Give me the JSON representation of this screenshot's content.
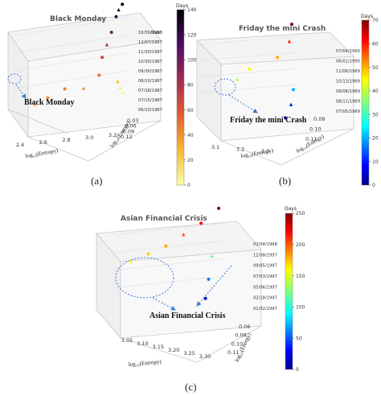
{
  "figure": {
    "panel_labels": [
      "(a)",
      "(b)",
      "(c)"
    ]
  },
  "chart_data": [
    {
      "type": "scatter",
      "title": "Black Monday",
      "xlabel": "log₁₀(Entropy)",
      "ylabel": "log₁₀(Energy)",
      "zlabel": "Date",
      "x_ticks": [
        "2.4",
        "2.6",
        "2.8",
        "3.0",
        "3.2"
      ],
      "y_ticks": [
        "0.03",
        "0.06",
        "0.09",
        "0.12"
      ],
      "z_ticks": [
        "10/30/1988",
        "12/07/1987",
        "11/30/1987",
        "10/30/1987",
        "09/30/1987",
        "08/10/1987",
        "07/18/1987",
        "07/15/1987",
        "06/10/1987"
      ],
      "colorbar": {
        "label": "Days",
        "colormap": "inferno",
        "ticks": [
          0,
          20,
          40,
          60,
          80,
          100,
          120,
          140
        ]
      },
      "annotation": "Black Monday",
      "points": [
        {
          "x": 2.45,
          "y": 0.04,
          "t": 30
        },
        {
          "x": 2.55,
          "y": 0.04,
          "t": 38
        },
        {
          "x": 2.7,
          "y": 0.05,
          "t": 44
        },
        {
          "x": 2.85,
          "y": 0.05,
          "t": 40
        },
        {
          "x": 3.0,
          "y": 0.07,
          "t": 50
        },
        {
          "x": 3.05,
          "y": 0.09,
          "t": 70
        },
        {
          "x": 3.1,
          "y": 0.1,
          "t": 85
        },
        {
          "x": 3.15,
          "y": 0.11,
          "t": 100
        },
        {
          "x": 3.2,
          "y": 0.12,
          "t": 120
        },
        {
          "x": 3.22,
          "y": 0.12,
          "t": 130
        },
        {
          "x": 3.25,
          "y": 0.12,
          "t": 138
        },
        {
          "x": 3.2,
          "y": 0.11,
          "t": 20
        },
        {
          "x": 3.22,
          "y": 0.11,
          "t": 10
        },
        {
          "x": 3.24,
          "y": 0.11,
          "t": 2
        }
      ]
    },
    {
      "type": "scatter",
      "title": "Friday the mini Crash",
      "xlabel": "log₁₀(Entropy)",
      "ylabel": "log₁₀(Energy)",
      "zlabel": "",
      "x_ticks": [
        "3.1",
        "3.2",
        "3.3"
      ],
      "y_ticks": [
        "0.09",
        "0.10",
        "0.11"
      ],
      "z_ticks": [
        "07/04/1990",
        "06/01/1990",
        "11/06/1989",
        "10/13/1989",
        "09/06/1989",
        "08/11/1989",
        "07/05/1989"
      ],
      "colorbar": {
        "label": "Days",
        "colormap": "jet",
        "ticks": [
          0,
          10,
          20,
          30,
          40,
          50,
          60,
          70
        ]
      },
      "annotation": "Friday the mini Crash",
      "points": [
        {
          "x": 3.1,
          "y": 0.09,
          "t": 40
        },
        {
          "x": 3.15,
          "y": 0.095,
          "t": 45
        },
        {
          "x": 3.25,
          "y": 0.1,
          "t": 50
        },
        {
          "x": 3.3,
          "y": 0.105,
          "t": 60
        },
        {
          "x": 3.32,
          "y": 0.11,
          "t": 72
        },
        {
          "x": 3.3,
          "y": 0.1,
          "t": 20
        },
        {
          "x": 3.28,
          "y": 0.095,
          "t": 10
        },
        {
          "x": 3.25,
          "y": 0.09,
          "t": 2
        }
      ]
    },
    {
      "type": "scatter",
      "title": "Asian Financial Crisis",
      "xlabel": "log₁₀(Entropy)",
      "ylabel": "log₁₀(Energy)",
      "zlabel": "",
      "x_ticks": [
        "3.05",
        "3.10",
        "3.15",
        "3.20",
        "3.25",
        "3.30"
      ],
      "y_ticks": [
        "0.06",
        "0.08",
        "0.10",
        "0.11"
      ],
      "z_ticks": [
        "02/04/1998",
        "12/08/1997",
        "09/05/1997",
        "07/03/1997",
        "05/06/1997",
        "02/18/1997",
        "01/02/1997"
      ],
      "colorbar": {
        "label": "Days",
        "colormap": "jet",
        "ticks": [
          0,
          50,
          100,
          150,
          200,
          250
        ]
      },
      "annotation": "Asian Financial Crisis",
      "points": [
        {
          "x": 3.05,
          "y": 0.06,
          "t": 160
        },
        {
          "x": 3.1,
          "y": 0.07,
          "t": 170
        },
        {
          "x": 3.15,
          "y": 0.08,
          "t": 180
        },
        {
          "x": 3.2,
          "y": 0.09,
          "t": 200
        },
        {
          "x": 3.25,
          "y": 0.1,
          "t": 220
        },
        {
          "x": 3.3,
          "y": 0.11,
          "t": 250
        },
        {
          "x": 3.28,
          "y": 0.105,
          "t": 120
        },
        {
          "x": 3.27,
          "y": 0.1,
          "t": 60
        },
        {
          "x": 3.26,
          "y": 0.095,
          "t": 10
        }
      ]
    }
  ]
}
